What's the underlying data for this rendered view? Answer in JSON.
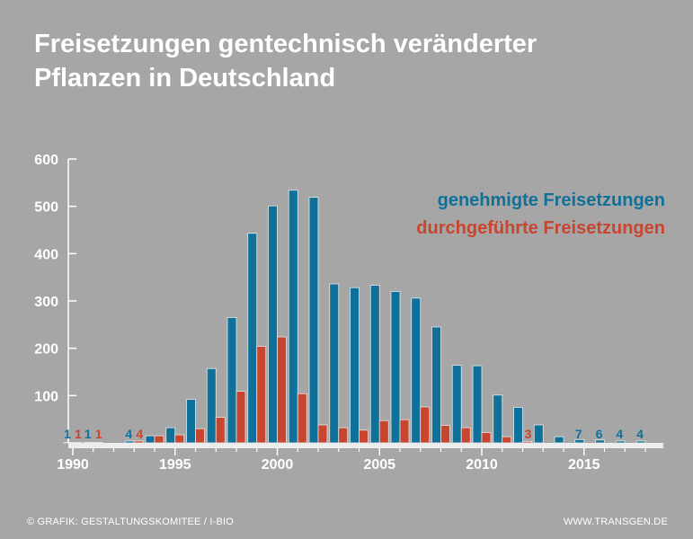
{
  "title": {
    "line1": "Freisetzungen gentechnisch veränderter",
    "line2": "Pflanzen in Deutschland"
  },
  "footer": {
    "left": "© GRAFIK: GESTALTUNGSKOMITEE / I-BIO",
    "right": "WWW.TRANSGEN.DE"
  },
  "colors": {
    "genehmigt": "#0f7199",
    "durchgefuehrt": "#c8452f",
    "background": "#a6a6a6",
    "axis": "#ffffff"
  },
  "chart_data": {
    "type": "bar",
    "title": "Freisetzungen gentechnisch veränderter Pflanzen in Deutschland",
    "xlabel": "",
    "ylabel": "",
    "ylim": [
      0,
      600
    ],
    "yticks": [
      100,
      200,
      300,
      400,
      500,
      600
    ],
    "xticks": [
      1990,
      1995,
      2000,
      2005,
      2010,
      2015
    ],
    "legend_position": "top-right",
    "grid": false,
    "categories": [
      1990,
      1991,
      1992,
      1993,
      1994,
      1995,
      1996,
      1997,
      1998,
      1999,
      2000,
      2001,
      2002,
      2003,
      2004,
      2005,
      2006,
      2007,
      2008,
      2009,
      2010,
      2011,
      2012,
      2013,
      2014,
      2015,
      2016,
      2017,
      2018
    ],
    "series": [
      {
        "name": "genehmigte Freisetzungen",
        "color": "#0f7199",
        "values": [
          1,
          1,
          null,
          4,
          15,
          32,
          92,
          157,
          265,
          443,
          501,
          534,
          519,
          336,
          328,
          333,
          320,
          306,
          245,
          164,
          163,
          101,
          75,
          38,
          13,
          7,
          6,
          4,
          4
        ]
      },
      {
        "name": "durchgeführte Freisetzungen",
        "color": "#c8452f",
        "values": [
          1,
          1,
          null,
          4,
          15,
          17,
          30,
          54,
          109,
          204,
          224,
          104,
          38,
          32,
          27,
          47,
          49,
          76,
          37,
          32,
          22,
          13,
          3,
          null,
          null,
          null,
          null,
          null,
          null
        ]
      }
    ],
    "data_labels": [
      {
        "year": 1990,
        "series": "genehmigte Freisetzungen",
        "text": "1"
      },
      {
        "year": 1990,
        "series": "durchgeführte Freisetzungen",
        "text": "1"
      },
      {
        "year": 1991,
        "series": "genehmigte Freisetzungen",
        "text": "1"
      },
      {
        "year": 1991,
        "series": "durchgeführte Freisetzungen",
        "text": "1"
      },
      {
        "year": 1993,
        "series": "genehmigte Freisetzungen",
        "text": "4"
      },
      {
        "year": 1993,
        "series": "durchgeführte Freisetzungen",
        "text": "4"
      },
      {
        "year": 2012,
        "series": "durchgeführte Freisetzungen",
        "text": "3"
      },
      {
        "year": 2015,
        "series": "genehmigte Freisetzungen",
        "text": "7"
      },
      {
        "year": 2016,
        "series": "genehmigte Freisetzungen",
        "text": "6"
      },
      {
        "year": 2017,
        "series": "genehmigte Freisetzungen",
        "text": "4"
      },
      {
        "year": 2018,
        "series": "genehmigte Freisetzungen",
        "text": "4"
      }
    ]
  }
}
